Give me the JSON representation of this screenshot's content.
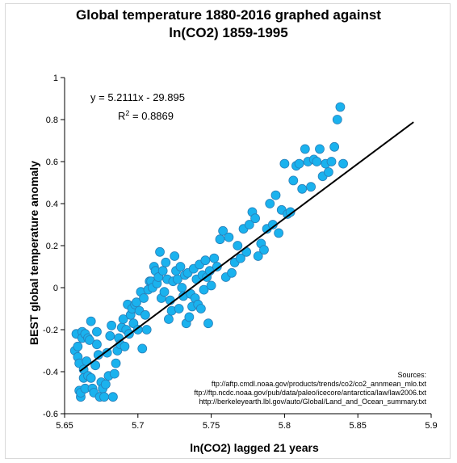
{
  "chart_data": {
    "type": "scatter",
    "title_line1": "Global temperature 1880-2016 graphed against",
    "title_line2": "ln(CO2) 1859-1995",
    "xlabel": "ln(CO2) lagged 21 years",
    "ylabel": "BEST global temperature anomaly",
    "xlim": [
      5.65,
      5.9
    ],
    "ylim": [
      -0.6,
      1.0
    ],
    "x_ticks": [
      "5.65",
      "5.7",
      "5.75",
      "5.8",
      "5.85",
      "5.9"
    ],
    "y_ticks": [
      "-0.6",
      "-0.4",
      "-0.2",
      "0",
      "0.2",
      "0.4",
      "0.6",
      "0.8",
      "1"
    ],
    "grid": false,
    "marker_color": "#1ab2ee",
    "trendline": {
      "slope": 5.2111,
      "intercept": -29.895,
      "x_range": [
        5.6605,
        5.888
      ],
      "equation": "y = 5.2111x  - 29.895",
      "r2_prefix": "R",
      "r2_sup": "2",
      "r2_value": " = 0.8869"
    },
    "sources": [
      "Sources:",
      "ftp://aftp.cmdl.noaa.gov/products/trends/co2/co2_annmean_mlo.txt",
      "ftp://ftp.ncdc.noaa.gov/pub/data/paleo/icecore/antarctica/law/law2006.txt",
      "http://berkeleyearth.lbl.gov/auto/Global/Land_and_Ocean_summary.txt"
    ],
    "points": [
      [
        5.657,
        -0.3
      ],
      [
        5.658,
        -0.22
      ],
      [
        5.659,
        -0.28
      ],
      [
        5.659,
        -0.33
      ],
      [
        5.66,
        -0.36
      ],
      [
        5.66,
        -0.49
      ],
      [
        5.661,
        -0.52
      ],
      [
        5.661,
        -0.5
      ],
      [
        5.662,
        -0.21
      ],
      [
        5.662,
        -0.24
      ],
      [
        5.663,
        -0.39
      ],
      [
        5.663,
        -0.43
      ],
      [
        5.664,
        -0.48
      ],
      [
        5.664,
        -0.22
      ],
      [
        5.665,
        -0.35
      ],
      [
        5.666,
        -0.42
      ],
      [
        5.666,
        -0.24
      ],
      [
        5.667,
        -0.25
      ],
      [
        5.668,
        -0.16
      ],
      [
        5.668,
        -0.43
      ],
      [
        5.669,
        -0.48
      ],
      [
        5.67,
        -0.5
      ],
      [
        5.671,
        -0.37
      ],
      [
        5.672,
        -0.27
      ],
      [
        5.672,
        -0.21
      ],
      [
        5.673,
        -0.32
      ],
      [
        5.674,
        -0.52
      ],
      [
        5.675,
        -0.45
      ],
      [
        5.676,
        -0.48
      ],
      [
        5.677,
        -0.52
      ],
      [
        5.678,
        -0.46
      ],
      [
        5.679,
        -0.31
      ],
      [
        5.68,
        -0.42
      ],
      [
        5.681,
        -0.23
      ],
      [
        5.682,
        -0.18
      ],
      [
        5.683,
        -0.52
      ],
      [
        5.684,
        -0.41
      ],
      [
        5.685,
        -0.36
      ],
      [
        5.686,
        -0.3
      ],
      [
        5.687,
        -0.24
      ],
      [
        5.688,
        -0.27
      ],
      [
        5.689,
        -0.19
      ],
      [
        5.69,
        -0.15
      ],
      [
        5.691,
        -0.28
      ],
      [
        5.692,
        -0.2
      ],
      [
        5.693,
        -0.08
      ],
      [
        5.694,
        -0.22
      ],
      [
        5.695,
        -0.13
      ],
      [
        5.696,
        -0.1
      ],
      [
        5.697,
        -0.17
      ],
      [
        5.698,
        -0.08
      ],
      [
        5.699,
        -0.07
      ],
      [
        5.7,
        -0.2
      ],
      [
        5.701,
        -0.11
      ],
      [
        5.702,
        -0.02
      ],
      [
        5.703,
        -0.29
      ],
      [
        5.704,
        -0.05
      ],
      [
        5.705,
        -0.13
      ],
      [
        5.706,
        -0.2
      ],
      [
        5.707,
        -0.01
      ],
      [
        5.708,
        0.03
      ],
      [
        5.709,
        0.03
      ],
      [
        5.71,
        0.0
      ],
      [
        5.711,
        0.1
      ],
      [
        5.712,
        0.08
      ],
      [
        5.713,
        0.02
      ],
      [
        5.714,
        0.05
      ],
      [
        5.715,
        0.17
      ],
      [
        5.716,
        -0.05
      ],
      [
        5.717,
        0.08
      ],
      [
        5.718,
        -0.02
      ],
      [
        5.719,
        0.12
      ],
      [
        5.72,
        0.04
      ],
      [
        5.721,
        -0.15
      ],
      [
        5.722,
        -0.06
      ],
      [
        5.723,
        -0.11
      ],
      [
        5.724,
        0.03
      ],
      [
        5.725,
        0.15
      ],
      [
        5.726,
        0.08
      ],
      [
        5.727,
        0.04
      ],
      [
        5.728,
        -0.1
      ],
      [
        5.729,
        0.1
      ],
      [
        5.73,
        0.0
      ],
      [
        5.731,
        -0.04
      ],
      [
        5.732,
        0.06
      ],
      [
        5.733,
        -0.17
      ],
      [
        5.734,
        0.07
      ],
      [
        5.735,
        -0.14
      ],
      [
        5.736,
        -0.03
      ],
      [
        5.737,
        -0.09
      ],
      [
        5.738,
        0.09
      ],
      [
        5.739,
        -0.05
      ],
      [
        5.74,
        0.04
      ],
      [
        5.741,
        -0.08
      ],
      [
        5.742,
        0.11
      ],
      [
        5.743,
        -0.1
      ],
      [
        5.744,
        0.06
      ],
      [
        5.745,
        -0.01
      ],
      [
        5.746,
        0.13
      ],
      [
        5.747,
        0.05
      ],
      [
        5.748,
        -0.17
      ],
      [
        5.749,
        0.08
      ],
      [
        5.75,
        0.01
      ],
      [
        5.752,
        0.14
      ],
      [
        5.754,
        0.1
      ],
      [
        5.756,
        0.23
      ],
      [
        5.758,
        0.27
      ],
      [
        5.76,
        0.05
      ],
      [
        5.762,
        0.24
      ],
      [
        5.764,
        0.07
      ],
      [
        5.766,
        0.12
      ],
      [
        5.768,
        0.2
      ],
      [
        5.77,
        0.14
      ],
      [
        5.772,
        0.28
      ],
      [
        5.774,
        0.17
      ],
      [
        5.776,
        0.3
      ],
      [
        5.778,
        0.36
      ],
      [
        5.78,
        0.33
      ],
      [
        5.782,
        0.15
      ],
      [
        5.784,
        0.21
      ],
      [
        5.786,
        0.18
      ],
      [
        5.788,
        0.28
      ],
      [
        5.79,
        0.4
      ],
      [
        5.792,
        0.3
      ],
      [
        5.794,
        0.44
      ],
      [
        5.796,
        0.26
      ],
      [
        5.798,
        0.37
      ],
      [
        5.8,
        0.59
      ],
      [
        5.802,
        0.35
      ],
      [
        5.804,
        0.36
      ],
      [
        5.806,
        0.51
      ],
      [
        5.808,
        0.58
      ],
      [
        5.81,
        0.59
      ],
      [
        5.812,
        0.47
      ],
      [
        5.814,
        0.66
      ],
      [
        5.816,
        0.6
      ],
      [
        5.818,
        0.48
      ],
      [
        5.82,
        0.61
      ],
      [
        5.822,
        0.6
      ],
      [
        5.824,
        0.66
      ],
      [
        5.826,
        0.53
      ],
      [
        5.828,
        0.59
      ],
      [
        5.83,
        0.55
      ],
      [
        5.832,
        0.6
      ],
      [
        5.834,
        0.67
      ],
      [
        5.836,
        0.8
      ],
      [
        5.838,
        0.86
      ],
      [
        5.84,
        0.59
      ]
    ]
  }
}
